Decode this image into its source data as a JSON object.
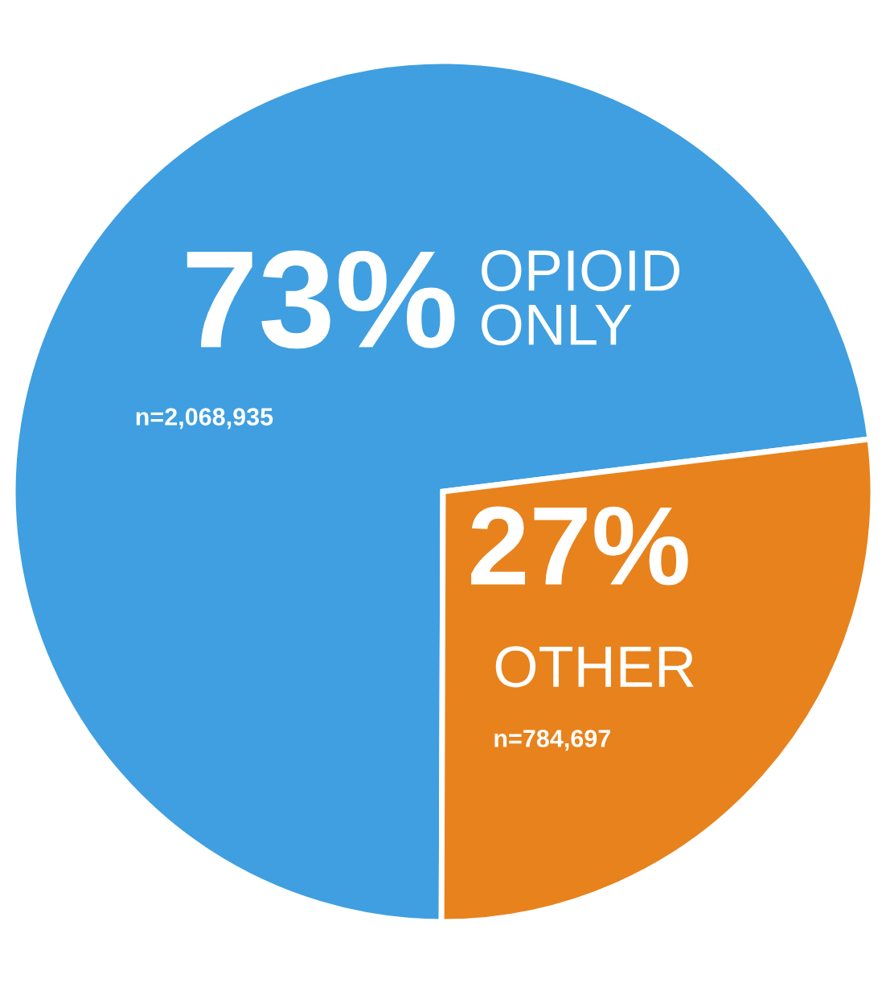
{
  "chart_data": {
    "type": "pie",
    "categories": [
      "OPIOID\nONLY",
      "OTHER"
    ],
    "values": [
      73,
      27
    ],
    "colors": [
      "#3f9fe0",
      "#e8821c"
    ],
    "value_labels": [
      "73%",
      "27%"
    ],
    "annotations": [
      "n=2,068,935",
      "n=784,697"
    ]
  }
}
